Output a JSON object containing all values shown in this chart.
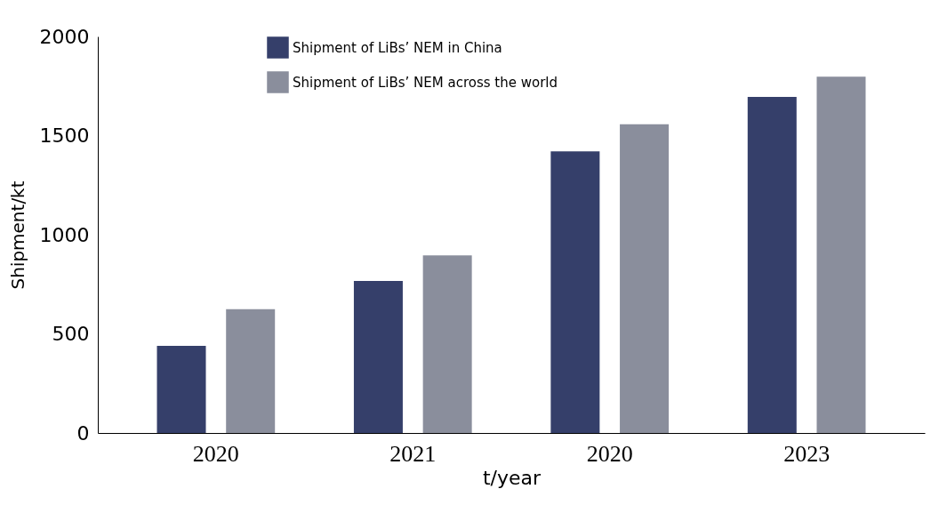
{
  "chart_data": {
    "type": "bar",
    "xlabel": "t/year",
    "ylabel": "Shipment/kt",
    "categories": [
      "2020",
      "2021",
      "2020",
      "2023"
    ],
    "series": [
      {
        "name": "Shipment of LiBs’ NEM in China",
        "color": "#353f6a",
        "values": [
          440,
          767,
          1420,
          1695
        ]
      },
      {
        "name": "Shipment of LiBs’ NEM across the world",
        "color": "#8a8e9c",
        "values": [
          625,
          896,
          1557,
          1797
        ]
      }
    ],
    "ylim": [
      0,
      2000
    ],
    "yticks": [
      0,
      500,
      1000,
      1500,
      2000
    ],
    "grid": false,
    "legend": "top left"
  }
}
